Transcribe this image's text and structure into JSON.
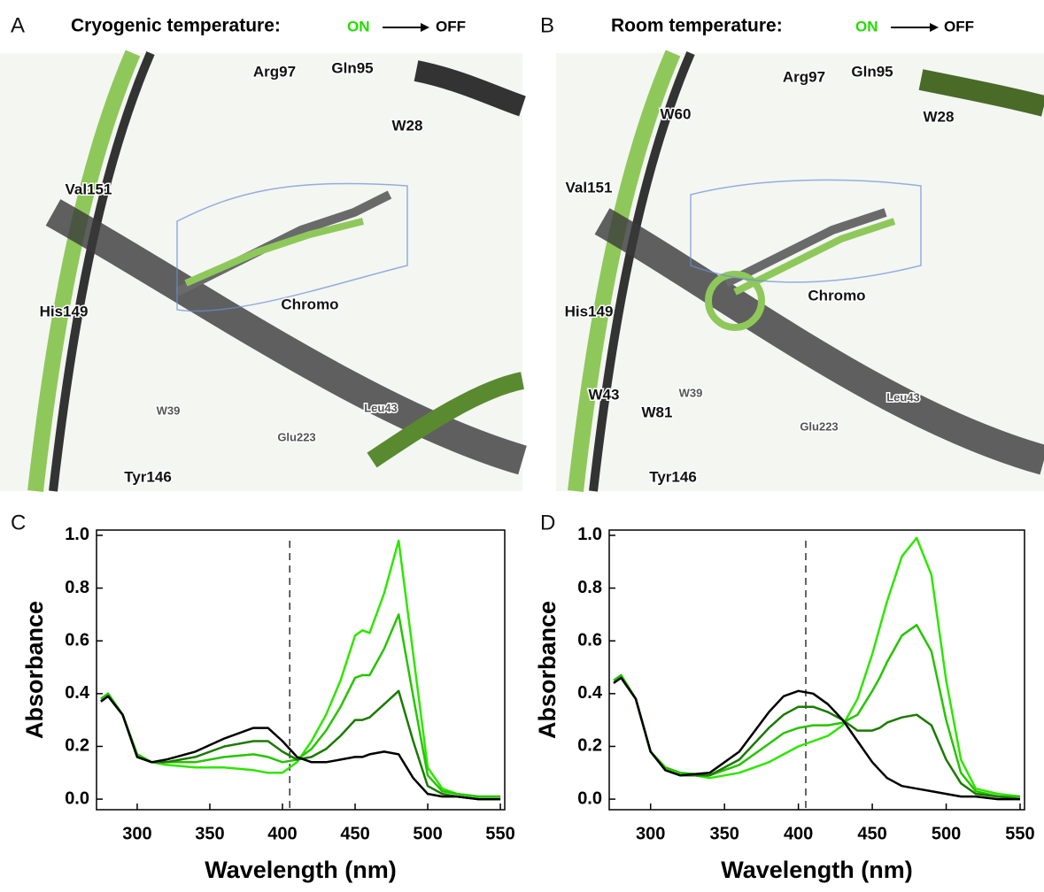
{
  "panels": [
    {
      "letter": "A",
      "title": "Cryogenic temperature:",
      "on": "ON",
      "off": "OFF",
      "labels": [
        "Arg97",
        "Gln95",
        "W28",
        "Val151",
        "His149",
        "Chromo",
        "W39",
        "Glu223",
        "Leu43",
        "Tyr146"
      ]
    },
    {
      "letter": "B",
      "title": "Room temperature:",
      "on": "ON",
      "off": "OFF",
      "labels": [
        "W60",
        "Arg97",
        "Gln95",
        "W28",
        "Val151",
        "His149",
        "Chromo",
        "W39",
        "W43",
        "W81",
        "Glu223",
        "Leu43",
        "Tyr146"
      ]
    }
  ],
  "chart_data": [
    {
      "type": "line",
      "panel": "C",
      "xlabel": "Wavelength (nm)",
      "ylabel": "Absorbance",
      "x": [
        275,
        280,
        290,
        300,
        310,
        320,
        340,
        360,
        380,
        390,
        400,
        410,
        420,
        430,
        440,
        450,
        455,
        460,
        470,
        480,
        490,
        500,
        510,
        520,
        535,
        550
      ],
      "series": [
        {
          "color": "#2ee600",
          "values": [
            0.38,
            0.4,
            0.32,
            0.17,
            0.14,
            0.13,
            0.12,
            0.12,
            0.11,
            0.1,
            0.1,
            0.14,
            0.22,
            0.32,
            0.45,
            0.62,
            0.64,
            0.63,
            0.78,
            0.98,
            0.55,
            0.12,
            0.04,
            0.02,
            0.01,
            0.01
          ]
        },
        {
          "color": "#26c400",
          "values": [
            0.38,
            0.4,
            0.32,
            0.17,
            0.14,
            0.14,
            0.14,
            0.16,
            0.17,
            0.16,
            0.14,
            0.15,
            0.19,
            0.26,
            0.35,
            0.46,
            0.47,
            0.47,
            0.57,
            0.7,
            0.39,
            0.09,
            0.03,
            0.02,
            0.01,
            0.01
          ]
        },
        {
          "color": "#1a7a00",
          "values": [
            0.37,
            0.39,
            0.32,
            0.16,
            0.14,
            0.14,
            0.16,
            0.2,
            0.22,
            0.22,
            0.18,
            0.15,
            0.16,
            0.19,
            0.24,
            0.3,
            0.3,
            0.31,
            0.36,
            0.41,
            0.22,
            0.05,
            0.02,
            0.01,
            0.0,
            0.0
          ]
        },
        {
          "color": "#000000",
          "values": [
            0.37,
            0.39,
            0.32,
            0.16,
            0.14,
            0.15,
            0.18,
            0.23,
            0.27,
            0.27,
            0.22,
            0.16,
            0.14,
            0.14,
            0.15,
            0.16,
            0.16,
            0.17,
            0.18,
            0.17,
            0.08,
            0.02,
            0.01,
            0.01,
            0.0,
            0.0
          ]
        }
      ],
      "vline": 405,
      "xlim": [
        272,
        553
      ],
      "xticks": [
        300,
        350,
        400,
        450,
        500,
        550
      ],
      "ylim": [
        -0.04,
        1.02
      ],
      "yticks": [
        {
          "value": 0,
          "label": "0.0"
        },
        0.2,
        0.4,
        0.6,
        0.8,
        {
          "value": 1,
          "label": "1.0"
        }
      ]
    },
    {
      "type": "line",
      "panel": "D",
      "xlabel": "Wavelength (nm)",
      "ylabel": "Absorbance",
      "x": [
        275,
        280,
        290,
        300,
        310,
        320,
        340,
        360,
        380,
        390,
        400,
        410,
        420,
        430,
        440,
        450,
        455,
        460,
        470,
        480,
        490,
        500,
        510,
        520,
        535,
        550
      ],
      "series": [
        {
          "color": "#2ee600",
          "values": [
            0.45,
            0.47,
            0.38,
            0.18,
            0.12,
            0.1,
            0.08,
            0.1,
            0.14,
            0.17,
            0.2,
            0.22,
            0.24,
            0.28,
            0.38,
            0.55,
            0.65,
            0.75,
            0.92,
            0.99,
            0.85,
            0.45,
            0.15,
            0.04,
            0.02,
            0.01
          ]
        },
        {
          "color": "#26c400",
          "values": [
            0.45,
            0.47,
            0.38,
            0.18,
            0.12,
            0.1,
            0.09,
            0.13,
            0.21,
            0.25,
            0.27,
            0.28,
            0.28,
            0.29,
            0.32,
            0.41,
            0.46,
            0.52,
            0.62,
            0.66,
            0.56,
            0.3,
            0.1,
            0.03,
            0.01,
            0.01
          ]
        },
        {
          "color": "#1a7a00",
          "values": [
            0.44,
            0.46,
            0.38,
            0.18,
            0.11,
            0.09,
            0.09,
            0.15,
            0.27,
            0.32,
            0.35,
            0.35,
            0.33,
            0.3,
            0.26,
            0.26,
            0.27,
            0.29,
            0.31,
            0.32,
            0.28,
            0.15,
            0.06,
            0.02,
            0.01,
            0.0
          ]
        },
        {
          "color": "#000000",
          "values": [
            0.44,
            0.46,
            0.38,
            0.18,
            0.11,
            0.09,
            0.1,
            0.18,
            0.33,
            0.39,
            0.41,
            0.4,
            0.36,
            0.3,
            0.22,
            0.14,
            0.11,
            0.08,
            0.05,
            0.04,
            0.03,
            0.02,
            0.01,
            0.01,
            0.0,
            0.0
          ]
        }
      ],
      "vline": 405,
      "xlim": [
        272,
        553
      ],
      "xticks": [
        300,
        350,
        400,
        450,
        500,
        550
      ],
      "ylim": [
        -0.04,
        1.02
      ],
      "yticks": [
        {
          "value": 0,
          "label": "0.0"
        },
        0.2,
        0.4,
        0.6,
        0.8,
        {
          "value": 1,
          "label": "1.0"
        }
      ]
    }
  ]
}
